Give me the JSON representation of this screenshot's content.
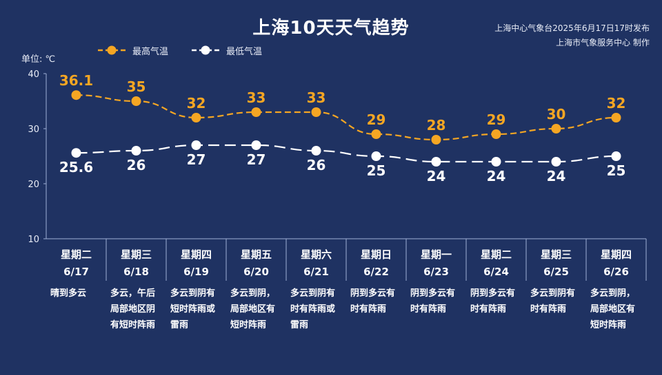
{
  "header": {
    "title": "上海10天天气趋势",
    "source_line1": "上海中心气象台2025年6月17日17时发布",
    "source_line2": "上海市气象服务中心 制作",
    "unit_label": "单位: ℃"
  },
  "colors": {
    "background": "#1f3262",
    "high": "#f5a623",
    "low": "#ffffff",
    "axis": "#9fb0d6"
  },
  "chart_data": {
    "type": "line",
    "ylim": [
      10,
      40
    ],
    "yticks": [
      "10",
      "20",
      "30",
      "40"
    ],
    "categories": [
      "星期二",
      "星期三",
      "星期四",
      "星期五",
      "星期六",
      "星期日",
      "星期一",
      "星期二",
      "星期三",
      "星期四"
    ],
    "dates": [
      "6/17",
      "6/18",
      "6/19",
      "6/20",
      "6/21",
      "6/22",
      "6/23",
      "6/24",
      "6/25",
      "6/26"
    ],
    "series": [
      {
        "name": "最高气温",
        "values": [
          36.1,
          35,
          32,
          33,
          33,
          29,
          28,
          29,
          30,
          32
        ],
        "labels": [
          "36.1",
          "35",
          "32",
          "33",
          "33",
          "29",
          "28",
          "29",
          "30",
          "32"
        ]
      },
      {
        "name": "最低气温",
        "values": [
          25.6,
          26,
          27,
          27,
          26,
          25,
          24,
          24,
          24,
          25
        ],
        "labels": [
          "25.6",
          "26",
          "27",
          "27",
          "26",
          "25",
          "24",
          "24",
          "24",
          "25"
        ]
      }
    ],
    "weather": [
      [
        "晴到多云"
      ],
      [
        "多云，午后",
        "局部地区阴",
        "有短时阵雨"
      ],
      [
        "多云到阴有",
        "短时阵雨或",
        "雷雨"
      ],
      [
        "多云到阴，",
        "局部地区有",
        "短时阵雨"
      ],
      [
        "多云到阴有",
        "时有阵雨或",
        "雷雨"
      ],
      [
        "阴到多云有",
        "时有阵雨"
      ],
      [
        "阴到多云有",
        "时有阵雨"
      ],
      [
        "阴到多云有",
        "时有阵雨"
      ],
      [
        "多云到阴有",
        "时有阵雨"
      ],
      [
        "多云到阴，",
        "局部地区有",
        "短时阵雨"
      ]
    ],
    "legend_position": "top-left"
  }
}
